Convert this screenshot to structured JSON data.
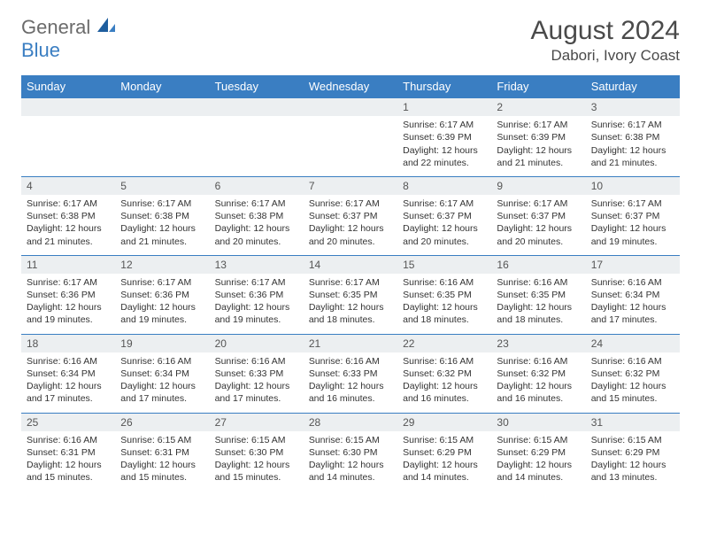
{
  "logo": {
    "general": "General",
    "blue": "Blue"
  },
  "title": "August 2024",
  "location": "Dabori, Ivory Coast",
  "colors": {
    "header_bg": "#3a7ec2",
    "header_text": "#ffffff",
    "daynum_bg": "#eceff1",
    "rule": "#3a7ec2",
    "text": "#333333",
    "title_text": "#4a4a4a"
  },
  "days_of_week": [
    "Sunday",
    "Monday",
    "Tuesday",
    "Wednesday",
    "Thursday",
    "Friday",
    "Saturday"
  ],
  "weeks": [
    [
      {
        "n": "",
        "lines": []
      },
      {
        "n": "",
        "lines": []
      },
      {
        "n": "",
        "lines": []
      },
      {
        "n": "",
        "lines": []
      },
      {
        "n": "1",
        "lines": [
          "Sunrise: 6:17 AM",
          "Sunset: 6:39 PM",
          "Daylight: 12 hours and 22 minutes."
        ]
      },
      {
        "n": "2",
        "lines": [
          "Sunrise: 6:17 AM",
          "Sunset: 6:39 PM",
          "Daylight: 12 hours and 21 minutes."
        ]
      },
      {
        "n": "3",
        "lines": [
          "Sunrise: 6:17 AM",
          "Sunset: 6:38 PM",
          "Daylight: 12 hours and 21 minutes."
        ]
      }
    ],
    [
      {
        "n": "4",
        "lines": [
          "Sunrise: 6:17 AM",
          "Sunset: 6:38 PM",
          "Daylight: 12 hours and 21 minutes."
        ]
      },
      {
        "n": "5",
        "lines": [
          "Sunrise: 6:17 AM",
          "Sunset: 6:38 PM",
          "Daylight: 12 hours and 21 minutes."
        ]
      },
      {
        "n": "6",
        "lines": [
          "Sunrise: 6:17 AM",
          "Sunset: 6:38 PM",
          "Daylight: 12 hours and 20 minutes."
        ]
      },
      {
        "n": "7",
        "lines": [
          "Sunrise: 6:17 AM",
          "Sunset: 6:37 PM",
          "Daylight: 12 hours and 20 minutes."
        ]
      },
      {
        "n": "8",
        "lines": [
          "Sunrise: 6:17 AM",
          "Sunset: 6:37 PM",
          "Daylight: 12 hours and 20 minutes."
        ]
      },
      {
        "n": "9",
        "lines": [
          "Sunrise: 6:17 AM",
          "Sunset: 6:37 PM",
          "Daylight: 12 hours and 20 minutes."
        ]
      },
      {
        "n": "10",
        "lines": [
          "Sunrise: 6:17 AM",
          "Sunset: 6:37 PM",
          "Daylight: 12 hours and 19 minutes."
        ]
      }
    ],
    [
      {
        "n": "11",
        "lines": [
          "Sunrise: 6:17 AM",
          "Sunset: 6:36 PM",
          "Daylight: 12 hours and 19 minutes."
        ]
      },
      {
        "n": "12",
        "lines": [
          "Sunrise: 6:17 AM",
          "Sunset: 6:36 PM",
          "Daylight: 12 hours and 19 minutes."
        ]
      },
      {
        "n": "13",
        "lines": [
          "Sunrise: 6:17 AM",
          "Sunset: 6:36 PM",
          "Daylight: 12 hours and 19 minutes."
        ]
      },
      {
        "n": "14",
        "lines": [
          "Sunrise: 6:17 AM",
          "Sunset: 6:35 PM",
          "Daylight: 12 hours and 18 minutes."
        ]
      },
      {
        "n": "15",
        "lines": [
          "Sunrise: 6:16 AM",
          "Sunset: 6:35 PM",
          "Daylight: 12 hours and 18 minutes."
        ]
      },
      {
        "n": "16",
        "lines": [
          "Sunrise: 6:16 AM",
          "Sunset: 6:35 PM",
          "Daylight: 12 hours and 18 minutes."
        ]
      },
      {
        "n": "17",
        "lines": [
          "Sunrise: 6:16 AM",
          "Sunset: 6:34 PM",
          "Daylight: 12 hours and 17 minutes."
        ]
      }
    ],
    [
      {
        "n": "18",
        "lines": [
          "Sunrise: 6:16 AM",
          "Sunset: 6:34 PM",
          "Daylight: 12 hours and 17 minutes."
        ]
      },
      {
        "n": "19",
        "lines": [
          "Sunrise: 6:16 AM",
          "Sunset: 6:34 PM",
          "Daylight: 12 hours and 17 minutes."
        ]
      },
      {
        "n": "20",
        "lines": [
          "Sunrise: 6:16 AM",
          "Sunset: 6:33 PM",
          "Daylight: 12 hours and 17 minutes."
        ]
      },
      {
        "n": "21",
        "lines": [
          "Sunrise: 6:16 AM",
          "Sunset: 6:33 PM",
          "Daylight: 12 hours and 16 minutes."
        ]
      },
      {
        "n": "22",
        "lines": [
          "Sunrise: 6:16 AM",
          "Sunset: 6:32 PM",
          "Daylight: 12 hours and 16 minutes."
        ]
      },
      {
        "n": "23",
        "lines": [
          "Sunrise: 6:16 AM",
          "Sunset: 6:32 PM",
          "Daylight: 12 hours and 16 minutes."
        ]
      },
      {
        "n": "24",
        "lines": [
          "Sunrise: 6:16 AM",
          "Sunset: 6:32 PM",
          "Daylight: 12 hours and 15 minutes."
        ]
      }
    ],
    [
      {
        "n": "25",
        "lines": [
          "Sunrise: 6:16 AM",
          "Sunset: 6:31 PM",
          "Daylight: 12 hours and 15 minutes."
        ]
      },
      {
        "n": "26",
        "lines": [
          "Sunrise: 6:15 AM",
          "Sunset: 6:31 PM",
          "Daylight: 12 hours and 15 minutes."
        ]
      },
      {
        "n": "27",
        "lines": [
          "Sunrise: 6:15 AM",
          "Sunset: 6:30 PM",
          "Daylight: 12 hours and 15 minutes."
        ]
      },
      {
        "n": "28",
        "lines": [
          "Sunrise: 6:15 AM",
          "Sunset: 6:30 PM",
          "Daylight: 12 hours and 14 minutes."
        ]
      },
      {
        "n": "29",
        "lines": [
          "Sunrise: 6:15 AM",
          "Sunset: 6:29 PM",
          "Daylight: 12 hours and 14 minutes."
        ]
      },
      {
        "n": "30",
        "lines": [
          "Sunrise: 6:15 AM",
          "Sunset: 6:29 PM",
          "Daylight: 12 hours and 14 minutes."
        ]
      },
      {
        "n": "31",
        "lines": [
          "Sunrise: 6:15 AM",
          "Sunset: 6:29 PM",
          "Daylight: 12 hours and 13 minutes."
        ]
      }
    ]
  ]
}
